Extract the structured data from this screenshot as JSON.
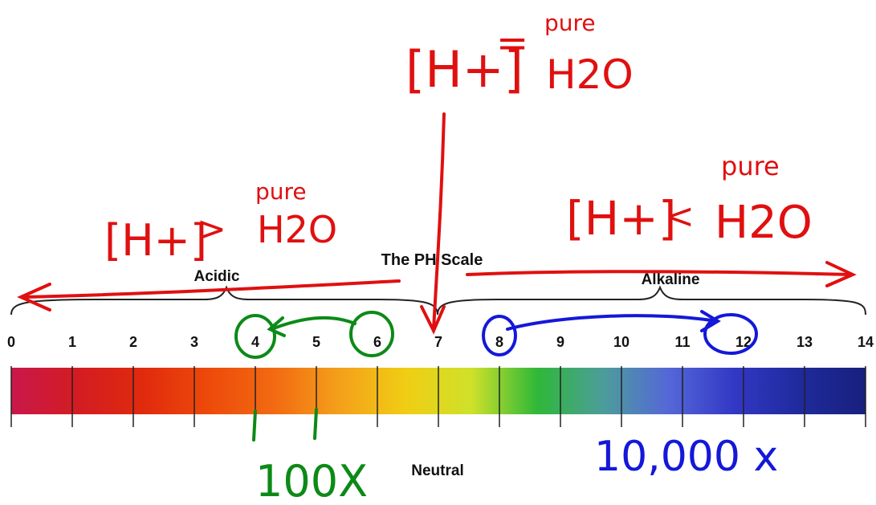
{
  "scale": {
    "title": "The PH Scale",
    "acidic_label": "Acidic",
    "alkaline_label": "Alkaline",
    "neutral_label": "Neutral",
    "ticks": [
      "0",
      "1",
      "2",
      "3",
      "4",
      "5",
      "6",
      "7",
      "8",
      "9",
      "10",
      "11",
      "12",
      "13",
      "14"
    ],
    "colors": [
      "#c8184a",
      "#d31c22",
      "#e02a0e",
      "#ed4a0a",
      "#f26a12",
      "#f4a01a",
      "#f0cd14",
      "#cfe12a",
      "#2fb838",
      "#4c9d9a",
      "#5567d8",
      "#3238c4",
      "#1f2a9c",
      "#18207d"
    ]
  },
  "annotations": {
    "neutral_red": {
      "bracket": "[H+]",
      "relation": "=",
      "word": "pure",
      "formula": "H2O",
      "color": "#e01010"
    },
    "acid_red": {
      "bracket": "[H+]",
      "relation": ">",
      "word": "pure",
      "formula": "H2O",
      "color": "#e01010"
    },
    "alkaline_red": {
      "bracket": "[H+]",
      "relation": "<",
      "word": "pure",
      "formula": "H2O",
      "color": "#e01010"
    },
    "green": {
      "label": "100X",
      "color": "#0c8a17",
      "from_ph": 6,
      "to_ph": 4
    },
    "blue": {
      "label": "10,000 x",
      "color": "#1418d8",
      "from_ph": 8,
      "to_ph": 12
    }
  }
}
